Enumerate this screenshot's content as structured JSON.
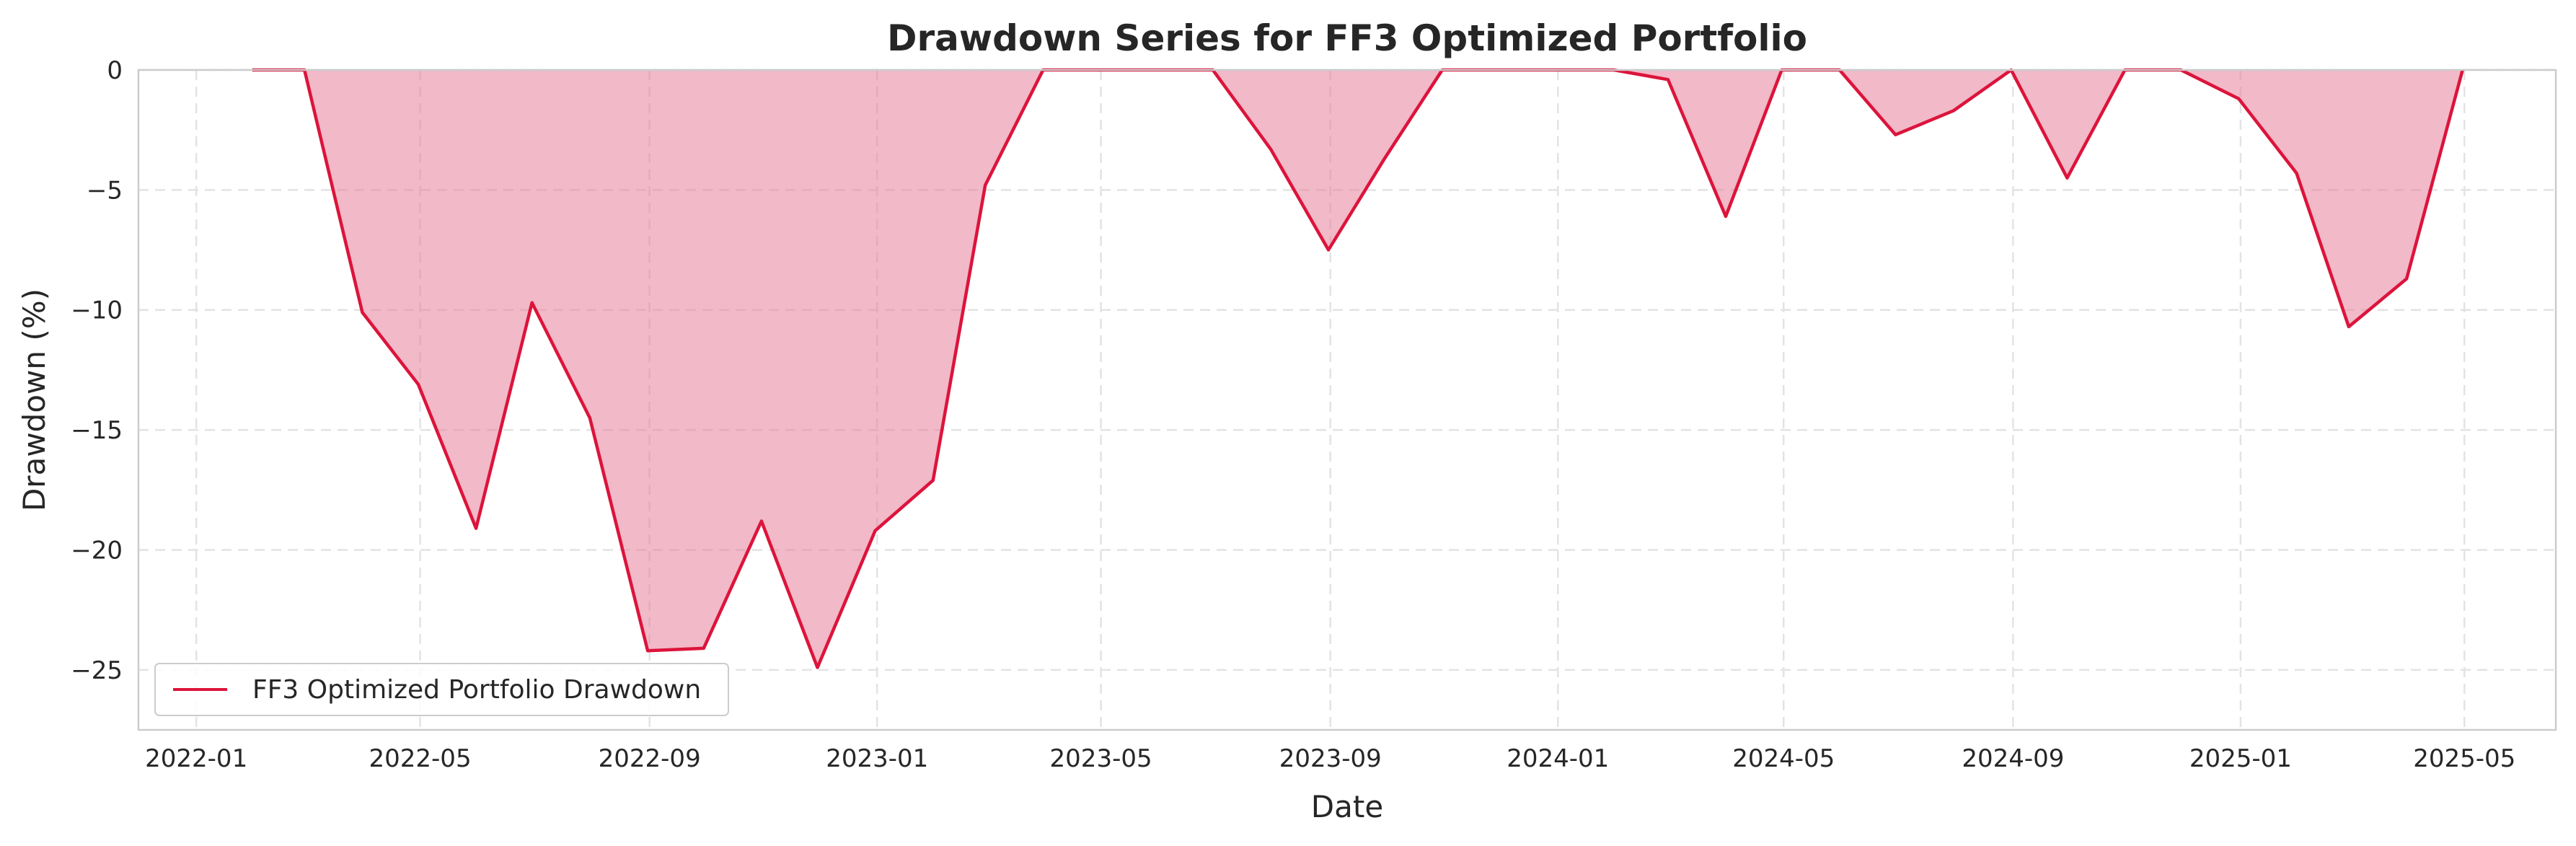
{
  "chart_data": {
    "type": "area",
    "title": "Drawdown Series for FF3 Optimized Portfolio",
    "xlabel": "Date",
    "ylabel": "Drawdown (%)",
    "x_ticks": [
      "2022-01",
      "2022-05",
      "2022-09",
      "2023-01",
      "2023-05",
      "2023-09",
      "2024-01",
      "2024-05",
      "2024-09",
      "2025-01",
      "2025-05"
    ],
    "y_ticks": [
      0,
      -5,
      -10,
      -15,
      -20,
      -25
    ],
    "xlim": [
      "2021-12-01",
      "2025-06-19"
    ],
    "ylim": [
      -27.5,
      0
    ],
    "grid": true,
    "legend_position": "lower-left",
    "series": [
      {
        "name": "FF3 Optimized Portfolio Drawdown",
        "color": "#dc143c",
        "fill_color": "#e8809a",
        "x": [
          "2022-01-31",
          "2022-02-28",
          "2022-03-31",
          "2022-04-30",
          "2022-05-31",
          "2022-06-30",
          "2022-07-31",
          "2022-08-31",
          "2022-09-30",
          "2022-10-31",
          "2022-11-30",
          "2022-12-31",
          "2023-01-31",
          "2023-02-28",
          "2023-03-31",
          "2023-04-30",
          "2023-05-31",
          "2023-06-30",
          "2023-07-31",
          "2023-08-31",
          "2023-09-30",
          "2023-10-31",
          "2023-11-30",
          "2023-12-31",
          "2024-01-31",
          "2024-02-29",
          "2024-03-31",
          "2024-04-30",
          "2024-05-31",
          "2024-06-30",
          "2024-07-31",
          "2024-08-31",
          "2024-09-30",
          "2024-10-31",
          "2024-11-30",
          "2024-12-31",
          "2025-01-31",
          "2025-02-28",
          "2025-03-31",
          "2025-04-30"
        ],
        "values": [
          0,
          0,
          -10.1,
          -13.1,
          -19.1,
          -9.7,
          -14.5,
          -24.2,
          -24.1,
          -18.8,
          -24.9,
          -19.2,
          -17.1,
          -4.8,
          0,
          0,
          0,
          0,
          -3.3,
          -7.5,
          -3.7,
          0,
          0,
          0,
          0,
          -0.4,
          -6.1,
          0,
          0,
          -2.7,
          -1.7,
          0,
          -4.5,
          0,
          0,
          -1.2,
          -4.3,
          -10.7,
          -8.7,
          0
        ]
      }
    ]
  }
}
